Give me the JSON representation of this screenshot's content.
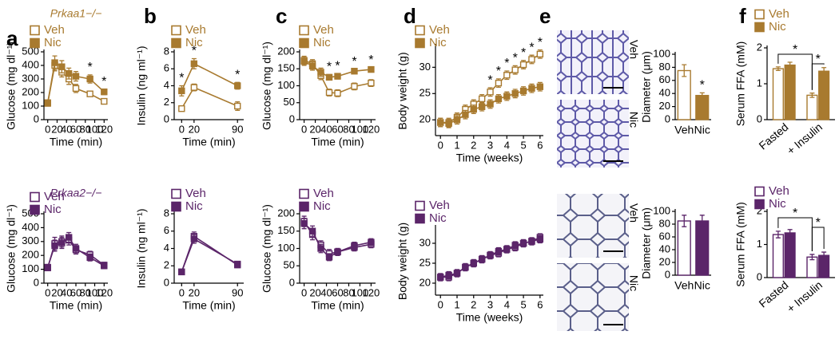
{
  "chart_data": [
    {
      "type": "line",
      "panel": "a",
      "subtitle": "Prkaa1−/−",
      "xlabel": "Time (min)",
      "ylabel": "Glucose (mg dl⁻¹)",
      "x": [
        0,
        15,
        30,
        45,
        60,
        90,
        120
      ],
      "xlim": [
        -8,
        128
      ],
      "xticks": [
        0,
        20,
        40,
        60,
        80,
        100,
        120
      ],
      "ylim": [
        0,
        500
      ],
      "yticks": [
        0,
        100,
        200,
        300,
        400,
        500
      ],
      "series": [
        {
          "name": "Veh",
          "color": "#a87a2f",
          "fill": "#ffffff",
          "values": [
            120,
            400,
            350,
            300,
            230,
            190,
            135
          ],
          "errors": [
            10,
            40,
            35,
            40,
            30,
            15,
            10
          ]
        },
        {
          "name": "Nic",
          "color": "#a87a2f",
          "fill": "#a87a2f",
          "values": [
            125,
            420,
            390,
            340,
            320,
            300,
            205
          ],
          "errors": [
            10,
            50,
            45,
            40,
            35,
            30,
            20
          ],
          "markers": [
            null,
            null,
            null,
            null,
            null,
            "*",
            "*"
          ]
        }
      ]
    },
    {
      "type": "line",
      "subtitle": "Prkaa2−/−",
      "xlabel": "Time (min)",
      "ylabel": "Glucose (mg dl⁻¹)",
      "x": [
        0,
        15,
        30,
        45,
        60,
        90,
        120
      ],
      "xlim": [
        -8,
        128
      ],
      "xticks": [
        0,
        20,
        40,
        60,
        80,
        100,
        120
      ],
      "ylim": [
        0,
        500
      ],
      "yticks": [
        0,
        100,
        200,
        300,
        400,
        500
      ],
      "series": [
        {
          "name": "Veh",
          "color": "#5b2569",
          "fill": "#ffffff",
          "values": [
            110,
            285,
            300,
            310,
            240,
            205,
            130
          ],
          "errors": [
            10,
            45,
            40,
            35,
            30,
            25,
            20
          ]
        },
        {
          "name": "Nic",
          "color": "#5b2569",
          "fill": "#5b2569",
          "values": [
            115,
            270,
            290,
            330,
            250,
            185,
            125
          ],
          "errors": [
            10,
            40,
            40,
            35,
            30,
            25,
            20
          ]
        }
      ]
    },
    {
      "type": "line",
      "panel": "b",
      "xlabel": "Time (min)",
      "ylabel": "Insulin (ng ml⁻¹)",
      "x": [
        0,
        20,
        90
      ],
      "xlim": [
        -12,
        100
      ],
      "xticks": [
        0,
        20,
        90
      ],
      "ylim": [
        0,
        8
      ],
      "yticks": [
        0,
        2,
        4,
        6,
        8
      ],
      "series": [
        {
          "name": "Veh",
          "color": "#a87a2f",
          "fill": "#ffffff",
          "values": [
            1.3,
            3.8,
            1.6
          ],
          "errors": [
            0.3,
            0.4,
            0.5
          ]
        },
        {
          "name": "Nic",
          "color": "#a87a2f",
          "fill": "#a87a2f",
          "values": [
            3.4,
            6.6,
            4.0
          ],
          "errors": [
            0.6,
            0.6,
            0.4
          ],
          "markers": [
            "*",
            "*",
            "*"
          ]
        }
      ]
    },
    {
      "type": "line",
      "xlabel": "Time (min)",
      "ylabel": "Insulin (ng ml⁻¹)",
      "x": [
        0,
        20,
        90
      ],
      "xlim": [
        -12,
        100
      ],
      "xticks": [
        0,
        20,
        90
      ],
      "ylim": [
        0,
        8
      ],
      "yticks": [
        0,
        2,
        4,
        6,
        8
      ],
      "series": [
        {
          "name": "Veh",
          "color": "#5b2569",
          "fill": "#ffffff",
          "values": [
            1.3,
            5.4,
            2.1
          ],
          "errors": [
            0.1,
            0.5,
            0.3
          ]
        },
        {
          "name": "Nic",
          "color": "#5b2569",
          "fill": "#5b2569",
          "values": [
            1.3,
            5.1,
            2.2
          ],
          "errors": [
            0.1,
            0.5,
            0.3
          ]
        }
      ]
    },
    {
      "type": "line",
      "panel": "c",
      "xlabel": "Time (min)",
      "ylabel": "Glucose (mg dl⁻¹)",
      "x": [
        0,
        15,
        30,
        45,
        60,
        90,
        120
      ],
      "xlim": [
        -8,
        128
      ],
      "xticks": [
        0,
        20,
        40,
        60,
        80,
        100,
        120
      ],
      "ylim": [
        0,
        200
      ],
      "yticks": [
        0,
        50,
        100,
        150,
        200
      ],
      "series": [
        {
          "name": "Veh",
          "color": "#a87a2f",
          "fill": "#ffffff",
          "values": [
            175,
            165,
            130,
            80,
            78,
            98,
            108
          ],
          "errors": [
            12,
            12,
            12,
            10,
            10,
            10,
            10
          ]
        },
        {
          "name": "Nic",
          "color": "#a87a2f",
          "fill": "#a87a2f",
          "values": [
            172,
            158,
            140,
            125,
            128,
            143,
            148
          ],
          "errors": [
            12,
            12,
            12,
            8,
            8,
            6,
            6
          ],
          "markers": [
            null,
            null,
            null,
            "*",
            "*",
            "*",
            "*"
          ]
        }
      ]
    },
    {
      "type": "line",
      "xlabel": "Time (min)",
      "ylabel": "Glucose (mg dl⁻¹)",
      "x": [
        0,
        15,
        30,
        45,
        60,
        90,
        120
      ],
      "xlim": [
        -8,
        128
      ],
      "xticks": [
        0,
        20,
        40,
        60,
        80,
        100,
        120
      ],
      "ylim": [
        0,
        200
      ],
      "yticks": [
        0,
        50,
        100,
        150,
        200
      ],
      "series": [
        {
          "name": "Veh",
          "color": "#5b2569",
          "fill": "#ffffff",
          "values": [
            178,
            140,
            110,
            85,
            90,
            103,
            112
          ],
          "errors": [
            15,
            15,
            12,
            12,
            10,
            10,
            10
          ]
        },
        {
          "name": "Nic",
          "color": "#5b2569",
          "fill": "#5b2569",
          "values": [
            172,
            150,
            100,
            75,
            90,
            108,
            118
          ],
          "errors": [
            15,
            15,
            12,
            10,
            10,
            10,
            10
          ]
        }
      ]
    },
    {
      "type": "line",
      "panel": "d",
      "xlabel": "Time (weeks)",
      "ylabel": "Body weight (g)",
      "x": [
        0,
        0.5,
        1,
        1.5,
        2,
        2.5,
        3,
        3.5,
        4,
        4.5,
        5,
        5.5,
        6
      ],
      "xlim": [
        -0.3,
        6.2
      ],
      "xticks": [
        0,
        1,
        2,
        3,
        4,
        5,
        6
      ],
      "ylim": [
        17,
        34
      ],
      "yticks": [
        20,
        25,
        30
      ],
      "series": [
        {
          "name": "Veh",
          "color": "#a87a2f",
          "fill": "#ffffff",
          "values": [
            19.5,
            19.5,
            20.5,
            22,
            23,
            24,
            25.3,
            27,
            28.5,
            29.5,
            30.5,
            31.5,
            32.5
          ],
          "errors": [
            0.8,
            0.8,
            0.8,
            0.8,
            0.8,
            0.8,
            0.8,
            0.8,
            0.8,
            0.8,
            0.8,
            0.8,
            0.8
          ],
          "markers": [
            null,
            null,
            null,
            null,
            null,
            null,
            "*",
            "*",
            "*",
            "*",
            "*",
            "*",
            "*"
          ]
        },
        {
          "name": "Nic",
          "color": "#a87a2f",
          "fill": "#a87a2f",
          "values": [
            19.5,
            19.3,
            20,
            21,
            22,
            22.5,
            23,
            24,
            24.5,
            25,
            25.5,
            26,
            26.3
          ],
          "errors": [
            0.8,
            0.8,
            0.8,
            0.8,
            0.8,
            0.8,
            0.8,
            0.8,
            0.8,
            0.8,
            0.8,
            0.8,
            0.8
          ]
        }
      ]
    },
    {
      "type": "line",
      "xlabel": "Time (weeks)",
      "ylabel": "Body weight (g)",
      "x": [
        0,
        0.5,
        1,
        1.5,
        2,
        2.5,
        3,
        3.5,
        4,
        4.5,
        5,
        5.5,
        6
      ],
      "xlim": [
        -0.3,
        6.2
      ],
      "xticks": [
        0,
        1,
        2,
        3,
        4,
        5,
        6
      ],
      "ylim": [
        17,
        34
      ],
      "yticks": [
        20,
        25,
        30
      ],
      "series": [
        {
          "name": "Veh",
          "color": "#5b2569",
          "fill": "#ffffff",
          "values": [
            21.5,
            21.5,
            22.5,
            24,
            25,
            26,
            27,
            27.5,
            28.5,
            29,
            30,
            30.5,
            31.5
          ],
          "errors": [
            0.9,
            0.9,
            0.9,
            0.9,
            0.9,
            0.9,
            0.9,
            0.9,
            0.9,
            0.9,
            0.9,
            0.9,
            0.9
          ]
        },
        {
          "name": "Nic",
          "color": "#5b2569",
          "fill": "#5b2569",
          "values": [
            21.5,
            22,
            22.5,
            24,
            25,
            26,
            27,
            28,
            28.5,
            29.5,
            30,
            30.5,
            31
          ],
          "errors": [
            0.9,
            0.9,
            0.9,
            0.9,
            0.9,
            0.9,
            0.9,
            0.9,
            0.9,
            0.9,
            0.9,
            0.9,
            0.9
          ]
        }
      ]
    },
    {
      "type": "bar",
      "panel": "e",
      "image_labels": [
        "Veh",
        "Nic"
      ],
      "ylabel": "Diameter (μm)",
      "categories": [
        "Veh",
        "Nic"
      ],
      "values": [
        75,
        37
      ],
      "errors": [
        9,
        4
      ],
      "markers": [
        null,
        "*"
      ],
      "color": "#a87a2f",
      "fills": [
        "#ffffff",
        "#a87a2f"
      ],
      "ylim": [
        0,
        100
      ],
      "yticks": [
        0,
        20,
        40,
        60,
        80,
        100
      ]
    },
    {
      "type": "bar",
      "image_labels": [
        "Veh",
        "Nic"
      ],
      "ylabel": "Diameter (μm)",
      "categories": [
        "Veh",
        "Nic"
      ],
      "values": [
        85,
        85
      ],
      "errors": [
        9,
        9
      ],
      "color": "#5b2569",
      "fills": [
        "#ffffff",
        "#5b2569"
      ],
      "ylim": [
        0,
        100
      ],
      "yticks": [
        0,
        20,
        40,
        60,
        80,
        100
      ]
    },
    {
      "type": "grouped_bar",
      "panel": "f",
      "ylabel": "Serum FFA (mM)",
      "categories": [
        "Fasted",
        "+ Insulin"
      ],
      "ylim": [
        0,
        2
      ],
      "yticks": [
        0,
        1,
        2
      ],
      "brackets": [
        "*",
        "*"
      ],
      "series": [
        {
          "name": "Veh",
          "color": "#a87a2f",
          "fill": "#ffffff",
          "values": [
            1.42,
            0.68
          ],
          "errors": [
            0.05,
            0.06
          ]
        },
        {
          "name": "Nic",
          "color": "#a87a2f",
          "fill": "#a87a2f",
          "values": [
            1.52,
            1.35
          ],
          "errors": [
            0.08,
            0.1
          ]
        }
      ]
    },
    {
      "type": "grouped_bar",
      "ylabel": "Serum FFA (mM)",
      "categories": [
        "Fasted",
        "+ Insulin"
      ],
      "ylim": [
        0,
        2
      ],
      "yticks": [
        0,
        1,
        2
      ],
      "brackets": [
        "*",
        "*"
      ],
      "series": [
        {
          "name": "Veh",
          "color": "#5b2569",
          "fill": "#ffffff",
          "values": [
            1.3,
            0.62
          ],
          "errors": [
            0.1,
            0.08
          ]
        },
        {
          "name": "Nic",
          "color": "#5b2569",
          "fill": "#5b2569",
          "values": [
            1.35,
            0.67
          ],
          "errors": [
            0.1,
            0.1
          ]
        }
      ]
    }
  ]
}
